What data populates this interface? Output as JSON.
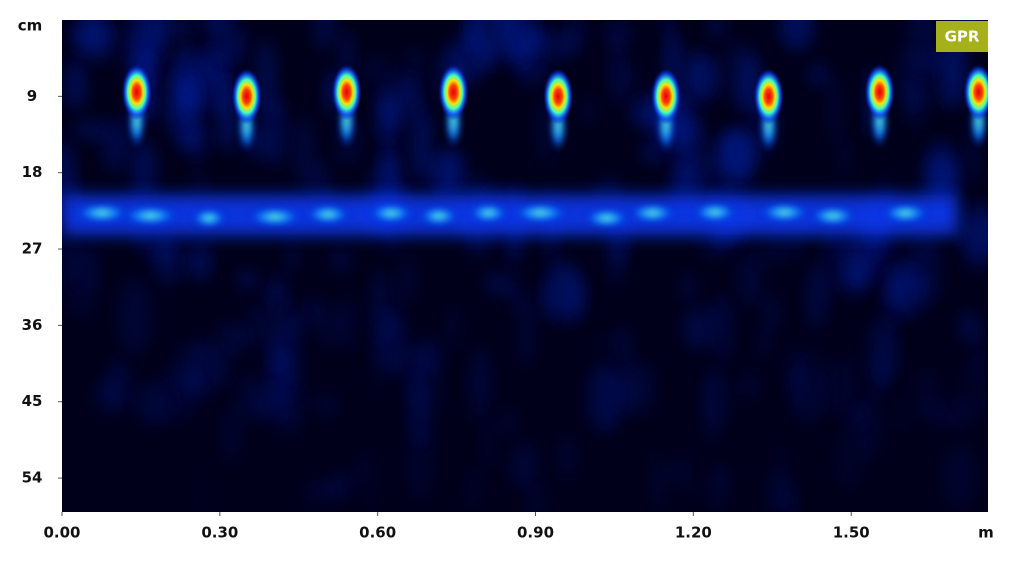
{
  "chart_data": {
    "type": "radargram",
    "badge": "GPR",
    "x_unit": "m",
    "y_unit": "cm",
    "xlim": [
      0,
      1.76
    ],
    "ylim": [
      0,
      58
    ],
    "xticks": [
      {
        "value": 0,
        "label": "0.00"
      },
      {
        "value": 0.3,
        "label": "0.30"
      },
      {
        "value": 0.6,
        "label": "0.60"
      },
      {
        "value": 0.9,
        "label": "0.90"
      },
      {
        "value": 1.2,
        "label": "1.20"
      },
      {
        "value": 1.5,
        "label": "1.50"
      }
    ],
    "yticks": [
      9,
      18,
      27,
      36,
      45,
      54
    ],
    "reflections": {
      "x": [
        0.142,
        0.351,
        0.541,
        0.744,
        0.943,
        1.148,
        1.343,
        1.554,
        1.742
      ],
      "depth": [
        8.5,
        9,
        8.5,
        8.5,
        9,
        9,
        9,
        8.5,
        8.5
      ]
    },
    "layer_depth": 23
  }
}
